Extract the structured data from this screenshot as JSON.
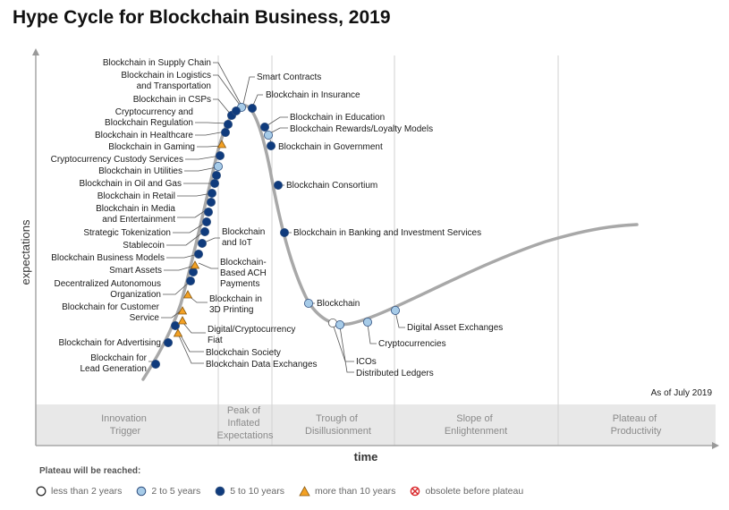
{
  "title": "Hype Cycle for Blockchain Business, 2019",
  "y_axis_label": "expectations",
  "x_axis_label": "time",
  "as_of": "As of July 2019",
  "phases": [
    "Innovation",
    "Trigger",
    "Peak of",
    "Inflated",
    "Expectations",
    "Trough of",
    "Disillusionment",
    "Slope of",
    "Enlightenment",
    "Plateau of",
    "Productivity"
  ],
  "plateau_title": "Plateau will be reached:",
  "legend": [
    {
      "label": "less than 2 years",
      "symbol": "white-circle",
      "color": "#ffffff"
    },
    {
      "label": "2 to 5 years",
      "symbol": "light-blue-circle",
      "color": "#a6cbe8"
    },
    {
      "label": "5 to 10 years",
      "symbol": "dark-blue-circle",
      "color": "#0f3b7d"
    },
    {
      "label": "more than 10 years",
      "symbol": "orange-triangle",
      "color": "#f3a124"
    },
    {
      "label": "obsolete before plateau",
      "symbol": "red-crossed-circle",
      "color": "#d9262a"
    }
  ],
  "technologies": [
    {
      "name": "Blockchain in Supply Chain",
      "plateau": "5 to 10 years"
    },
    {
      "name": "Blockchain in Logistics and Transportation",
      "plateau": "2 to 5 years"
    },
    {
      "name": "Blockchain in CSPs",
      "plateau": "5 to 10 years"
    },
    {
      "name": "Cryptocurrency and Blockchain Regulation",
      "plateau": "5 to 10 years"
    },
    {
      "name": "Blockchain in Healthcare",
      "plateau": "5 to 10 years"
    },
    {
      "name": "Blockchain in Gaming",
      "plateau": "more than 10 years"
    },
    {
      "name": "Cryptocurrency Custody Services",
      "plateau": "2 to 5 years"
    },
    {
      "name": "Blockchain in Utilities",
      "plateau": "5 to 10 years"
    },
    {
      "name": "Blockchain in Oil and Gas",
      "plateau": "5 to 10 years"
    },
    {
      "name": "Blockchain in Retail",
      "plateau": "5 to 10 years"
    },
    {
      "name": "Blockchain in Media and Entertainment",
      "plateau": "5 to 10 years"
    },
    {
      "name": "Strategic Tokenization",
      "plateau": "5 to 10 years"
    },
    {
      "name": "Stablecoin",
      "plateau": "5 to 10 years"
    },
    {
      "name": "Blockchain Business Models",
      "plateau": "5 to 10 years"
    },
    {
      "name": "Smart Assets",
      "plateau": "more than 10 years"
    },
    {
      "name": "Decentralized Autonomous Organization",
      "plateau": "5 to 10 years"
    },
    {
      "name": "Blockchain for Customer Service",
      "plateau": "more than 10 years"
    },
    {
      "name": "Blockchain for Advertising",
      "plateau": "5 to 10 years"
    },
    {
      "name": "Blockchain for Lead Generation",
      "plateau": "5 to 10 years"
    },
    {
      "name": "Blockchain and IoT",
      "plateau": "5 to 10 years"
    },
    {
      "name": "Blockchain-Based ACH Payments",
      "plateau": "5 to 10 years"
    },
    {
      "name": "Blockchain in 3D Printing",
      "plateau": "more than 10 years"
    },
    {
      "name": "Digital/Cryptocurrency Fiat",
      "plateau": "more than 10 years"
    },
    {
      "name": "Blockchain Society",
      "plateau": "5 to 10 years"
    },
    {
      "name": "Blockchain Data Exchanges",
      "plateau": "5 to 10 years"
    },
    {
      "name": "Smart Contracts",
      "plateau": "2 to 5 years"
    },
    {
      "name": "Blockchain in Insurance",
      "plateau": "5 to 10 years"
    },
    {
      "name": "Blockchain in Education",
      "plateau": "5 to 10 years"
    },
    {
      "name": "Blockchain Rewards/Loyalty Models",
      "plateau": "2 to 5 years"
    },
    {
      "name": "Blockchain in Government",
      "plateau": "5 to 10 years"
    },
    {
      "name": "Blockchain Consortium",
      "plateau": "5 to 10 years"
    },
    {
      "name": "Blockchain in Banking and Investment Services",
      "plateau": "5 to 10 years"
    },
    {
      "name": "Blockchain",
      "plateau": "2 to 5 years"
    },
    {
      "name": "ICOs",
      "plateau": "less than 2 years"
    },
    {
      "name": "Distributed Ledgers",
      "plateau": "2 to 5 years"
    },
    {
      "name": "Cryptocurrencies",
      "plateau": "2 to 5 years"
    },
    {
      "name": "Digital Asset Exchanges",
      "plateau": "2 to 5 years"
    }
  ]
}
